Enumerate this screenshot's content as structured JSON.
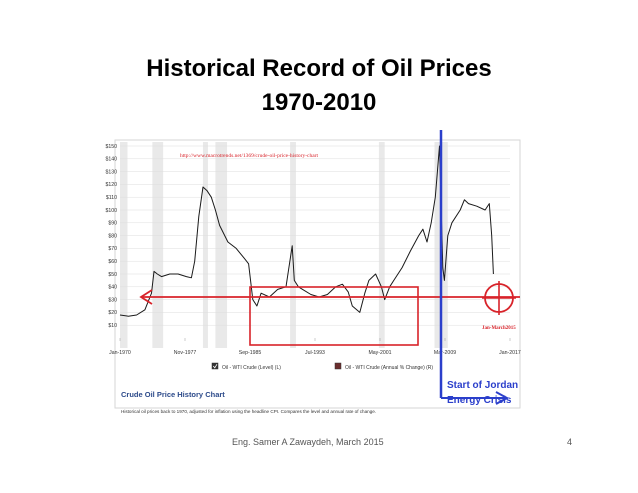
{
  "slide": {
    "title_line1": "Historical Record of Oil Prices",
    "title_line2": "1970-2010",
    "footer_author": "Eng. Samer A Zawaydeh, March 2015",
    "page_number": "4"
  },
  "annotations": {
    "source_url": "http://www.macrotrends.net/1369/crude-oil-price-history-chart",
    "jordan_line1": "Start of Jordan",
    "jordan_line2": "Energy Crisis",
    "marker_label": "Jan-March2015"
  },
  "chart_caption": {
    "title": "Crude Oil Price History Chart",
    "description": "Historical oil prices back to 1970, adjusted for inflation using the headline CPI. Compares the level and annual rate of change."
  },
  "colors": {
    "price_line": "#1a1a1a",
    "recession_band": "#e9e9e9",
    "annotation_red": "#d8232a",
    "annotation_blue": "#2b3fcb",
    "grid": "#dddddd",
    "legend_level": "#333333",
    "legend_change": "#6b2e2e"
  },
  "chart_data": {
    "type": "line",
    "x_ticks": [
      "Jan-1970",
      "Nov-1977",
      "Sep-1985",
      "Jul-1993",
      "May-2001",
      "Mar-2009",
      "Jan-2017"
    ],
    "y_ticks": [
      "$10",
      "$20",
      "$30",
      "$40",
      "$50",
      "$60",
      "$70",
      "$80",
      "$90",
      "$100",
      "$110",
      "$120",
      "$130",
      "$140",
      "$150"
    ],
    "ylim": [
      0,
      150
    ],
    "xlim": [
      1970.0,
      2017.0
    ],
    "grid": true,
    "legend_position": "bottom",
    "legend": [
      "Oil - WTI Crude (Level) (L)",
      "Oil - WTI Crude (Annual % Change) (R)"
    ],
    "series": [
      {
        "name": "Oil - WTI Crude (Level) (L)",
        "x": [
          1970.0,
          1971.0,
          1972.0,
          1973.0,
          1973.8,
          1974.1,
          1974.5,
          1975.0,
          1976.0,
          1977.0,
          1978.0,
          1978.6,
          1979.0,
          1979.5,
          1980.0,
          1980.5,
          1981.0,
          1981.5,
          1982.0,
          1983.0,
          1984.0,
          1985.0,
          1985.5,
          1986.0,
          1986.5,
          1987.0,
          1988.0,
          1989.0,
          1990.0,
          1990.75,
          1991.0,
          1991.5,
          1992.0,
          1993.0,
          1994.0,
          1995.0,
          1996.0,
          1996.8,
          1997.5,
          1998.0,
          1998.9,
          1999.5,
          2000.0,
          2000.8,
          2001.5,
          2001.9,
          2002.5,
          2003.0,
          2004.0,
          2005.0,
          2006.0,
          2006.5,
          2007.0,
          2007.5,
          2008.0,
          2008.5,
          2008.9,
          2009.1,
          2009.5,
          2010.0,
          2011.0,
          2011.5,
          2012.0,
          2013.0,
          2014.0,
          2014.5,
          2014.8,
          2015.0
        ],
        "values": [
          18,
          17,
          18,
          22,
          35,
          52,
          50,
          48,
          50,
          50,
          48,
          47,
          60,
          95,
          118,
          115,
          110,
          100,
          88,
          75,
          70,
          62,
          58,
          30,
          25,
          35,
          32,
          38,
          40,
          72,
          45,
          40,
          38,
          34,
          32,
          34,
          40,
          42,
          36,
          25,
          20,
          35,
          45,
          50,
          40,
          30,
          40,
          45,
          55,
          68,
          80,
          85,
          75,
          90,
          110,
          150,
          55,
          45,
          80,
          90,
          100,
          108,
          105,
          103,
          100,
          105,
          80,
          50
        ]
      }
    ]
  }
}
